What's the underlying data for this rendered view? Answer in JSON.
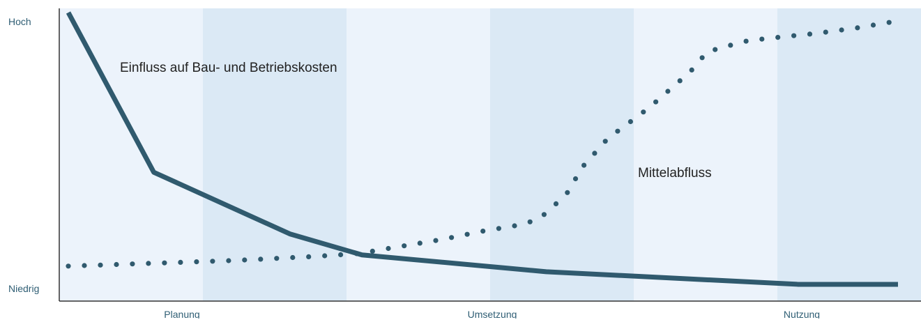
{
  "chart_data": {
    "type": "line",
    "title": "",
    "xlabel": "",
    "ylabel": "",
    "y_tick_labels": [
      "Hoch",
      "Niedrig"
    ],
    "phases": [
      "Planung",
      "Umsetzung",
      "Nutzung"
    ],
    "xlim": [
      0,
      100
    ],
    "ylim": [
      0,
      100
    ],
    "grid": false,
    "legend": "none",
    "series": [
      {
        "name": "Einfluss auf Bau- und Betriebskosten",
        "style": "solid",
        "color": "#305a6e",
        "x": [
          0,
          10.3,
          26.7,
          35.4,
          57.6,
          87.9,
          100
        ],
        "y": [
          100,
          43,
          21,
          13.5,
          7.5,
          3,
          3
        ]
      },
      {
        "name": "Mittelabfluss",
        "style": "dotted",
        "color": "#305a6e",
        "x": [
          0,
          10,
          20,
          30,
          35,
          40,
          45,
          50,
          55,
          57,
          60,
          62,
          65,
          70,
          75,
          77,
          80,
          82,
          85,
          90,
          95,
          100
        ],
        "y": [
          9.5,
          10.5,
          11.5,
          13,
          14,
          16.5,
          19,
          22,
          24.5,
          27,
          35,
          45,
          55,
          66,
          79,
          86,
          88.5,
          90,
          91,
          92.5,
          94.5,
          97
        ]
      }
    ],
    "annotations": [
      {
        "text": "Einfluss auf Bau- und Betriebskosten",
        "series": 0
      },
      {
        "text": "Mittelabfluss",
        "series": 1
      }
    ],
    "colors": {
      "band_light": "#ecf3fb",
      "band_dark": "#dbe9f5",
      "axis": "#333333",
      "tick_label": "#2f5e74",
      "annotation": "#222222"
    }
  }
}
